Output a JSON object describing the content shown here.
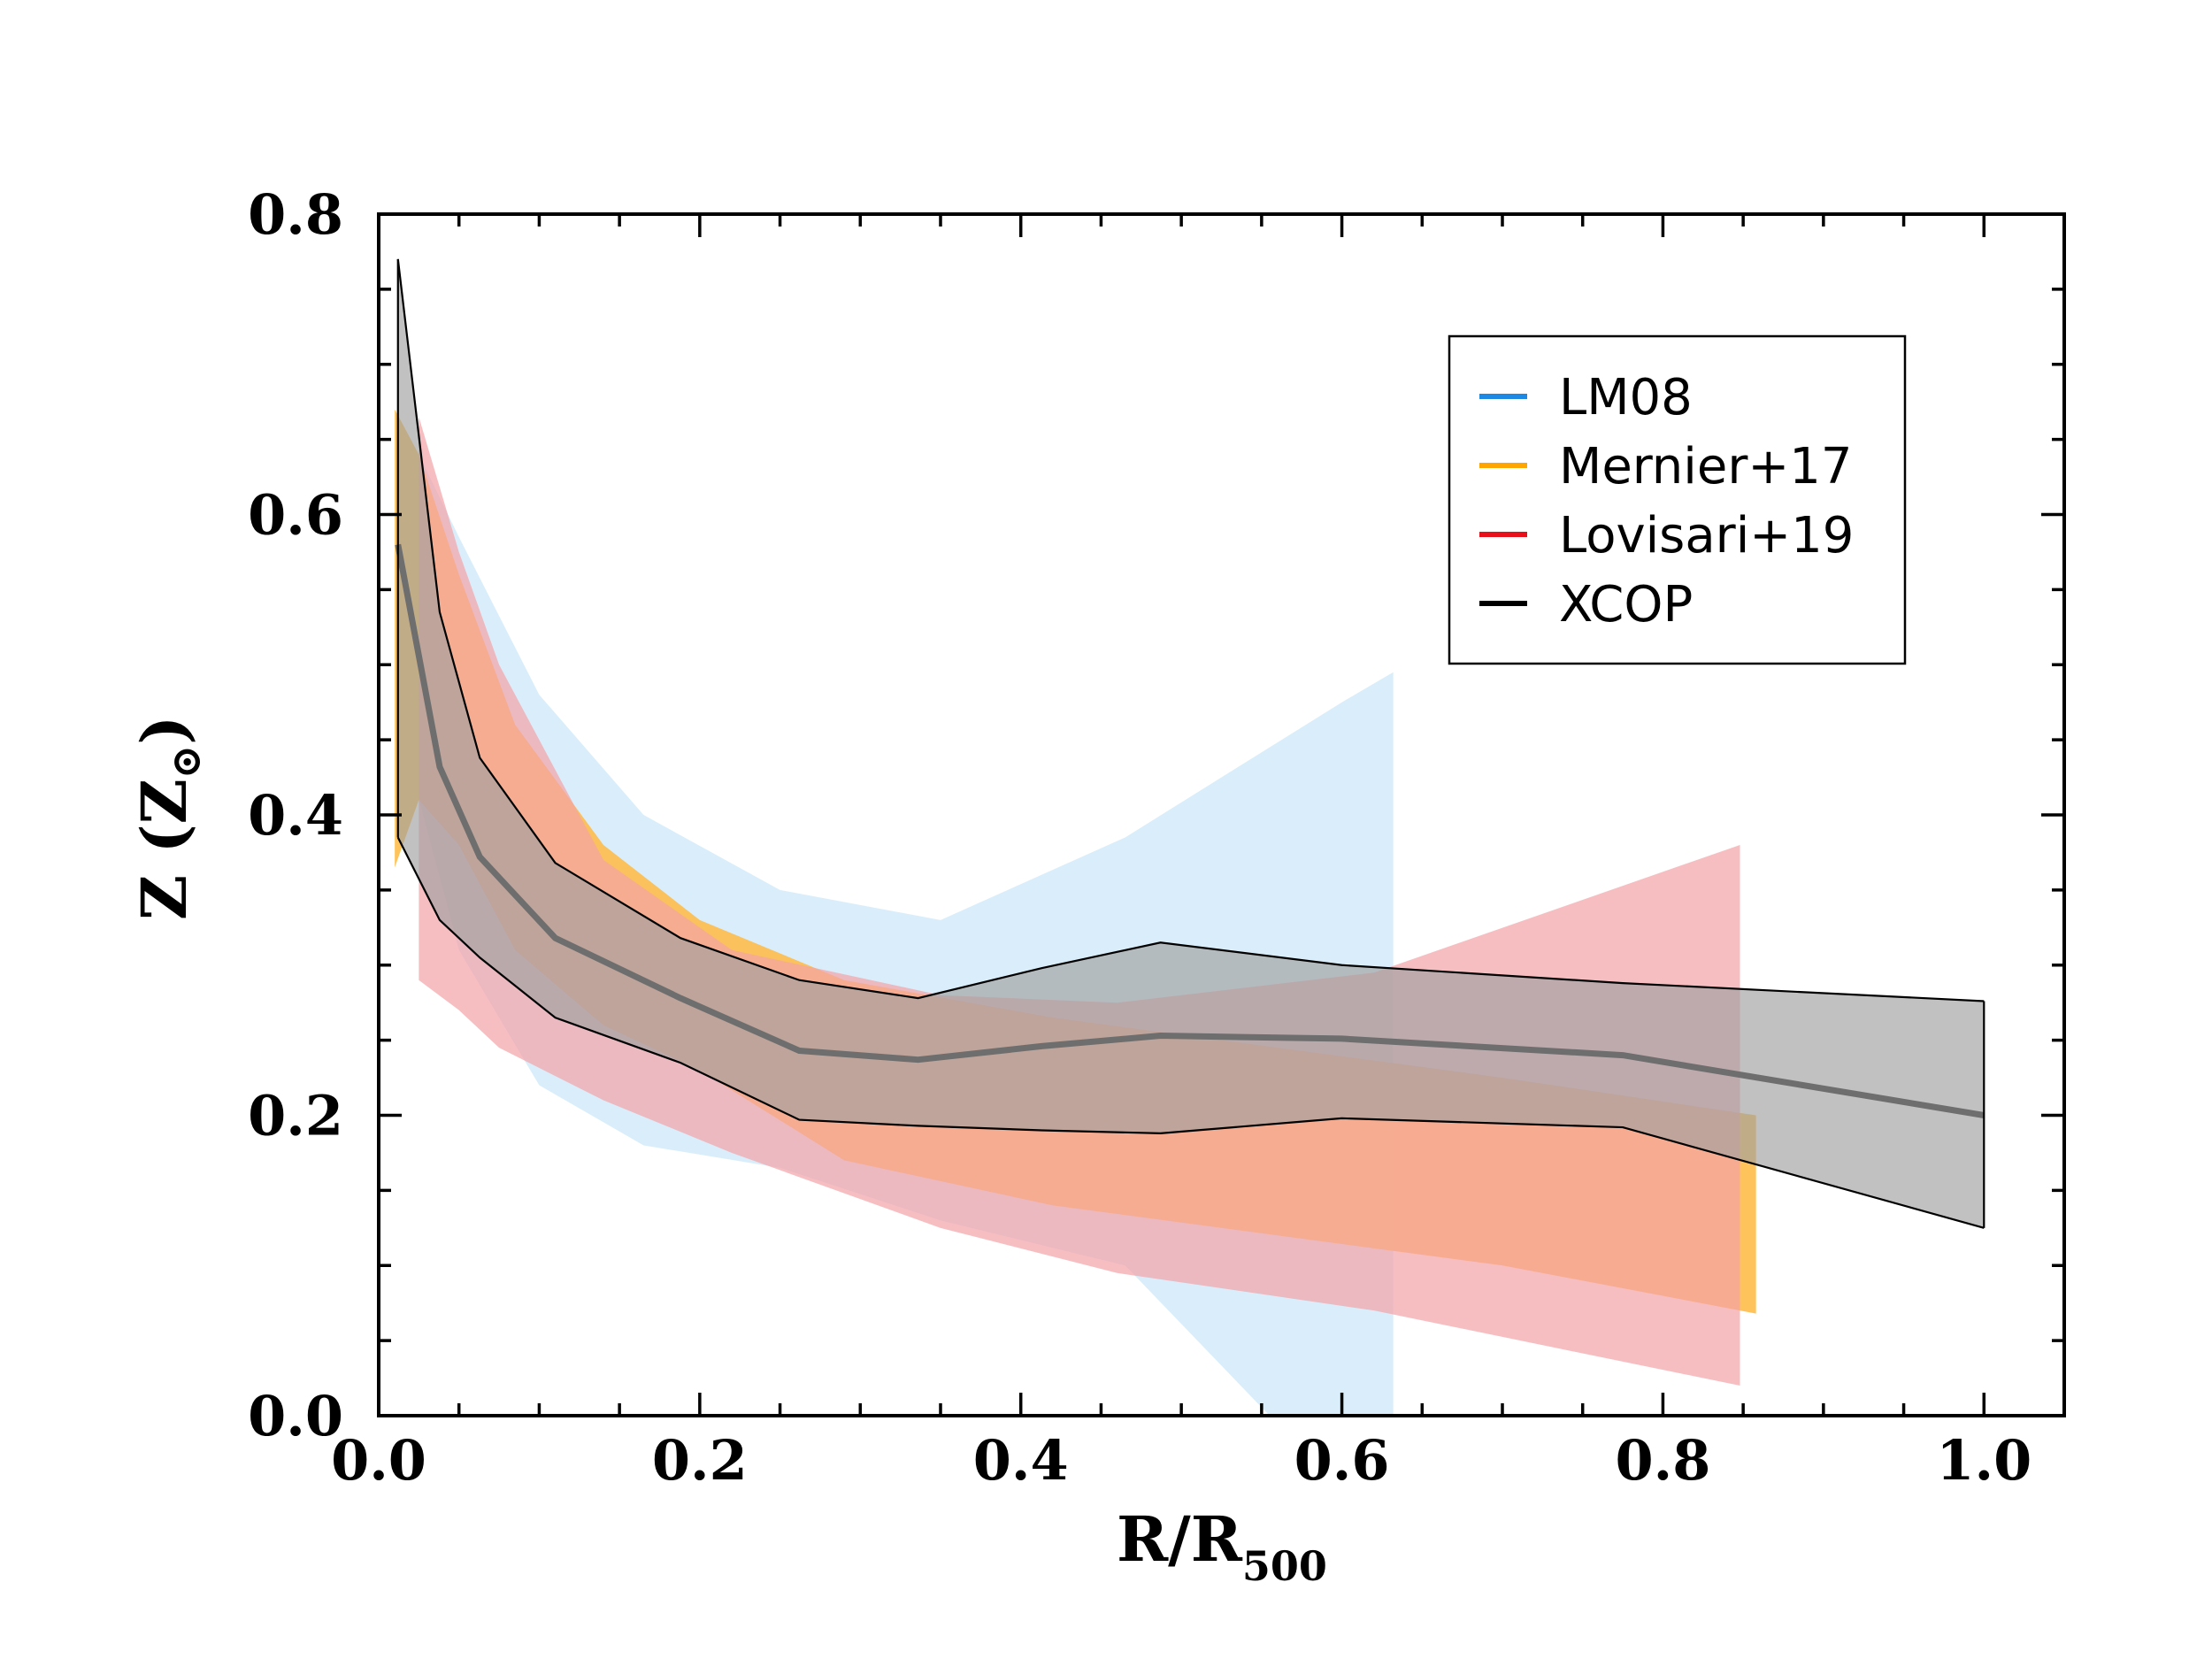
{
  "chart_data": {
    "type": "area",
    "xlabel": "R/R",
    "xlabel_sub": "500",
    "ylabel": "Z (Z",
    "ylabel_symbol": "⊙",
    "ylabel_close": ")",
    "xlim": [
      0.0,
      1.05
    ],
    "ylim": [
      0.0,
      0.8
    ],
    "xticks": [
      0.0,
      0.2,
      0.4,
      0.6,
      0.8,
      1.0
    ],
    "xtick_labels": [
      "0.0",
      "0.2",
      "0.4",
      "0.6",
      "0.8",
      "1.0"
    ],
    "yticks": [
      0.0,
      0.2,
      0.4,
      0.6,
      0.8
    ],
    "ytick_labels": [
      "0.0",
      "0.2",
      "0.4",
      "0.6",
      "0.8"
    ],
    "legend_position": "upper-right",
    "series": [
      {
        "name": "LM08",
        "color": "#1e88e5",
        "fill": "#bfe3f7",
        "x": [
          0.025,
          0.05,
          0.1,
          0.165,
          0.25,
          0.35,
          0.465,
          0.6,
          0.632
        ],
        "upper": [
          0.64,
          0.585,
          0.48,
          0.4,
          0.35,
          0.33,
          0.385,
          0.475,
          0.495
        ],
        "lower": [
          0.41,
          0.31,
          0.22,
          0.18,
          0.165,
          0.13,
          0.1,
          -0.05,
          -0.05
        ]
      },
      {
        "name": "Mernier+17",
        "color": "#ffa500",
        "fill": "#ffb840",
        "x": [
          0.01,
          0.025,
          0.05,
          0.085,
          0.14,
          0.2,
          0.29,
          0.42,
          0.56,
          0.7,
          0.858
        ],
        "upper": [
          0.67,
          0.64,
          0.56,
          0.46,
          0.38,
          0.33,
          0.29,
          0.265,
          0.245,
          0.225,
          0.2
        ],
        "lower": [
          0.365,
          0.41,
          0.38,
          0.31,
          0.26,
          0.23,
          0.17,
          0.14,
          0.12,
          0.1,
          0.068
        ]
      },
      {
        "name": "Lovisari+19",
        "color": "#e8101a",
        "fill": "#f4a3a8",
        "x": [
          0.025,
          0.05,
          0.075,
          0.14,
          0.22,
          0.35,
          0.46,
          0.62,
          0.848
        ],
        "upper": [
          0.665,
          0.575,
          0.5,
          0.37,
          0.31,
          0.28,
          0.275,
          0.295,
          0.38
        ],
        "lower": [
          0.29,
          0.27,
          0.245,
          0.21,
          0.175,
          0.125,
          0.095,
          0.07,
          0.02
        ]
      },
      {
        "name": "XCOP",
        "color": "#000000",
        "fill": "#a0a0a0",
        "line_color": "#6e6e6e",
        "x": [
          0.012,
          0.038,
          0.063,
          0.11,
          0.188,
          0.262,
          0.336,
          0.413,
          0.487,
          0.6,
          0.775,
          1.0
        ],
        "upper": [
          0.77,
          0.535,
          0.438,
          0.368,
          0.318,
          0.29,
          0.278,
          0.298,
          0.315,
          0.3,
          0.288,
          0.276
        ],
        "mid": [
          0.58,
          0.432,
          0.372,
          0.318,
          0.278,
          0.243,
          0.237,
          0.246,
          0.253,
          0.251,
          0.24,
          0.2
        ],
        "lower": [
          0.385,
          0.33,
          0.305,
          0.265,
          0.235,
          0.197,
          0.193,
          0.19,
          0.188,
          0.198,
          0.192,
          0.125
        ]
      }
    ]
  }
}
